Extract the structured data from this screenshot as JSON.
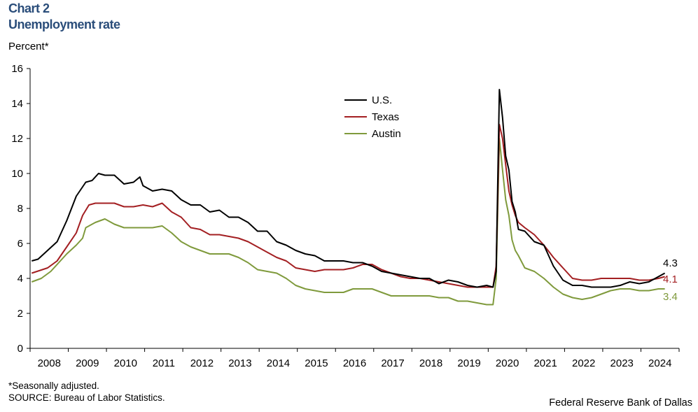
{
  "header": {
    "chart_number": "Chart 2",
    "title": "Unemployment rate",
    "ylabel": "Percent*"
  },
  "footer": {
    "note": "*Seasonally adjusted.",
    "source": "SOURCE: Bureau of Labor Statistics.",
    "credit": "Federal Reserve Bank of Dallas"
  },
  "chart_data": {
    "type": "line",
    "title": "Unemployment rate",
    "ylabel": "Percent*",
    "xlabel": "",
    "ylim": [
      0,
      16
    ],
    "yticks": [
      0,
      2,
      4,
      6,
      8,
      10,
      12,
      14,
      16
    ],
    "xticks": [
      "2008",
      "2009",
      "2010",
      "2011",
      "2012",
      "2013",
      "2014",
      "2015",
      "2016",
      "2017",
      "2018",
      "2019",
      "2020",
      "2021",
      "2022",
      "2023",
      "2024"
    ],
    "xlim": [
      "2008-01",
      "2024-12"
    ],
    "grid": false,
    "legend_position": "top-center",
    "series": [
      {
        "name": "U.S.",
        "color": "#000000",
        "end_label": "4.3",
        "points": [
          [
            "2008-01",
            5.0
          ],
          [
            "2008-03",
            5.1
          ],
          [
            "2008-06",
            5.6
          ],
          [
            "2008-09",
            6.1
          ],
          [
            "2008-12",
            7.3
          ],
          [
            "2009-03",
            8.7
          ],
          [
            "2009-06",
            9.5
          ],
          [
            "2009-08",
            9.6
          ],
          [
            "2009-10",
            10.0
          ],
          [
            "2009-12",
            9.9
          ],
          [
            "2010-03",
            9.9
          ],
          [
            "2010-06",
            9.4
          ],
          [
            "2010-09",
            9.5
          ],
          [
            "2010-11",
            9.8
          ],
          [
            "2010-12",
            9.3
          ],
          [
            "2011-03",
            9.0
          ],
          [
            "2011-06",
            9.1
          ],
          [
            "2011-09",
            9.0
          ],
          [
            "2011-12",
            8.5
          ],
          [
            "2012-03",
            8.2
          ],
          [
            "2012-06",
            8.2
          ],
          [
            "2012-09",
            7.8
          ],
          [
            "2012-12",
            7.9
          ],
          [
            "2013-03",
            7.5
          ],
          [
            "2013-06",
            7.5
          ],
          [
            "2013-09",
            7.2
          ],
          [
            "2013-12",
            6.7
          ],
          [
            "2014-03",
            6.7
          ],
          [
            "2014-06",
            6.1
          ],
          [
            "2014-09",
            5.9
          ],
          [
            "2014-12",
            5.6
          ],
          [
            "2015-03",
            5.4
          ],
          [
            "2015-06",
            5.3
          ],
          [
            "2015-09",
            5.0
          ],
          [
            "2015-12",
            5.0
          ],
          [
            "2016-03",
            5.0
          ],
          [
            "2016-06",
            4.9
          ],
          [
            "2016-09",
            4.9
          ],
          [
            "2016-12",
            4.7
          ],
          [
            "2017-03",
            4.4
          ],
          [
            "2017-06",
            4.3
          ],
          [
            "2017-09",
            4.2
          ],
          [
            "2017-12",
            4.1
          ],
          [
            "2018-03",
            4.0
          ],
          [
            "2018-06",
            4.0
          ],
          [
            "2018-09",
            3.7
          ],
          [
            "2018-12",
            3.9
          ],
          [
            "2019-03",
            3.8
          ],
          [
            "2019-06",
            3.6
          ],
          [
            "2019-09",
            3.5
          ],
          [
            "2019-12",
            3.6
          ],
          [
            "2020-02",
            3.5
          ],
          [
            "2020-03",
            4.4
          ],
          [
            "2020-04",
            14.8
          ],
          [
            "2020-05",
            13.2
          ],
          [
            "2020-06",
            11.0
          ],
          [
            "2020-07",
            10.2
          ],
          [
            "2020-08",
            8.4
          ],
          [
            "2020-09",
            7.8
          ],
          [
            "2020-10",
            6.8
          ],
          [
            "2020-12",
            6.7
          ],
          [
            "2021-03",
            6.1
          ],
          [
            "2021-06",
            5.9
          ],
          [
            "2021-09",
            4.7
          ],
          [
            "2021-12",
            3.9
          ],
          [
            "2022-03",
            3.6
          ],
          [
            "2022-06",
            3.6
          ],
          [
            "2022-09",
            3.5
          ],
          [
            "2022-12",
            3.5
          ],
          [
            "2023-03",
            3.5
          ],
          [
            "2023-06",
            3.6
          ],
          [
            "2023-09",
            3.8
          ],
          [
            "2023-12",
            3.7
          ],
          [
            "2024-03",
            3.8
          ],
          [
            "2024-06",
            4.1
          ],
          [
            "2024-08",
            4.3
          ]
        ]
      },
      {
        "name": "Texas",
        "color": "#a31f22",
        "end_label": "4.1",
        "points": [
          [
            "2008-01",
            4.3
          ],
          [
            "2008-06",
            4.6
          ],
          [
            "2008-09",
            5.0
          ],
          [
            "2008-12",
            5.8
          ],
          [
            "2009-03",
            6.6
          ],
          [
            "2009-05",
            7.6
          ],
          [
            "2009-07",
            8.2
          ],
          [
            "2009-09",
            8.3
          ],
          [
            "2009-12",
            8.3
          ],
          [
            "2010-03",
            8.3
          ],
          [
            "2010-06",
            8.1
          ],
          [
            "2010-09",
            8.1
          ],
          [
            "2010-12",
            8.2
          ],
          [
            "2011-03",
            8.1
          ],
          [
            "2011-06",
            8.3
          ],
          [
            "2011-09",
            7.8
          ],
          [
            "2011-12",
            7.5
          ],
          [
            "2012-03",
            6.9
          ],
          [
            "2012-06",
            6.8
          ],
          [
            "2012-09",
            6.5
          ],
          [
            "2012-12",
            6.5
          ],
          [
            "2013-03",
            6.4
          ],
          [
            "2013-06",
            6.3
          ],
          [
            "2013-09",
            6.1
          ],
          [
            "2013-12",
            5.8
          ],
          [
            "2014-03",
            5.5
          ],
          [
            "2014-06",
            5.2
          ],
          [
            "2014-09",
            5.0
          ],
          [
            "2014-12",
            4.6
          ],
          [
            "2015-03",
            4.5
          ],
          [
            "2015-06",
            4.4
          ],
          [
            "2015-09",
            4.5
          ],
          [
            "2015-12",
            4.5
          ],
          [
            "2016-03",
            4.5
          ],
          [
            "2016-06",
            4.6
          ],
          [
            "2016-09",
            4.8
          ],
          [
            "2016-12",
            4.8
          ],
          [
            "2017-03",
            4.5
          ],
          [
            "2017-06",
            4.3
          ],
          [
            "2017-09",
            4.1
          ],
          [
            "2017-12",
            4.0
          ],
          [
            "2018-03",
            4.0
          ],
          [
            "2018-06",
            3.9
          ],
          [
            "2018-09",
            3.8
          ],
          [
            "2018-12",
            3.7
          ],
          [
            "2019-03",
            3.6
          ],
          [
            "2019-06",
            3.5
          ],
          [
            "2019-09",
            3.5
          ],
          [
            "2019-12",
            3.5
          ],
          [
            "2020-02",
            3.5
          ],
          [
            "2020-03",
            4.7
          ],
          [
            "2020-04",
            12.8
          ],
          [
            "2020-05",
            12.0
          ],
          [
            "2020-06",
            10.5
          ],
          [
            "2020-07",
            9.0
          ],
          [
            "2020-08",
            8.2
          ],
          [
            "2020-09",
            7.6
          ],
          [
            "2020-10",
            7.2
          ],
          [
            "2020-12",
            6.9
          ],
          [
            "2021-03",
            6.5
          ],
          [
            "2021-06",
            5.9
          ],
          [
            "2021-09",
            5.2
          ],
          [
            "2021-12",
            4.6
          ],
          [
            "2022-03",
            4.0
          ],
          [
            "2022-06",
            3.9
          ],
          [
            "2022-09",
            3.9
          ],
          [
            "2022-12",
            4.0
          ],
          [
            "2023-03",
            4.0
          ],
          [
            "2023-06",
            4.0
          ],
          [
            "2023-09",
            4.0
          ],
          [
            "2023-12",
            3.9
          ],
          [
            "2024-03",
            3.9
          ],
          [
            "2024-06",
            4.0
          ],
          [
            "2024-08",
            4.1
          ]
        ]
      },
      {
        "name": "Austin",
        "color": "#7f9a3c",
        "end_label": "3.4",
        "points": [
          [
            "2008-01",
            3.8
          ],
          [
            "2008-04",
            4.0
          ],
          [
            "2008-07",
            4.4
          ],
          [
            "2008-10",
            5.0
          ],
          [
            "2008-12",
            5.4
          ],
          [
            "2009-03",
            5.9
          ],
          [
            "2009-05",
            6.3
          ],
          [
            "2009-06",
            6.9
          ],
          [
            "2009-09",
            7.2
          ],
          [
            "2009-12",
            7.4
          ],
          [
            "2010-03",
            7.1
          ],
          [
            "2010-06",
            6.9
          ],
          [
            "2010-09",
            6.9
          ],
          [
            "2010-12",
            6.9
          ],
          [
            "2011-03",
            6.9
          ],
          [
            "2011-06",
            7.0
          ],
          [
            "2011-09",
            6.6
          ],
          [
            "2011-12",
            6.1
          ],
          [
            "2012-03",
            5.8
          ],
          [
            "2012-06",
            5.6
          ],
          [
            "2012-09",
            5.4
          ],
          [
            "2012-12",
            5.4
          ],
          [
            "2013-03",
            5.4
          ],
          [
            "2013-06",
            5.2
          ],
          [
            "2013-09",
            4.9
          ],
          [
            "2013-12",
            4.5
          ],
          [
            "2014-03",
            4.4
          ],
          [
            "2014-06",
            4.3
          ],
          [
            "2014-09",
            4.0
          ],
          [
            "2014-12",
            3.6
          ],
          [
            "2015-03",
            3.4
          ],
          [
            "2015-06",
            3.3
          ],
          [
            "2015-09",
            3.2
          ],
          [
            "2015-12",
            3.2
          ],
          [
            "2016-03",
            3.2
          ],
          [
            "2016-06",
            3.4
          ],
          [
            "2016-09",
            3.4
          ],
          [
            "2016-12",
            3.4
          ],
          [
            "2017-03",
            3.2
          ],
          [
            "2017-06",
            3.0
          ],
          [
            "2017-09",
            3.0
          ],
          [
            "2017-12",
            3.0
          ],
          [
            "2018-03",
            3.0
          ],
          [
            "2018-06",
            3.0
          ],
          [
            "2018-09",
            2.9
          ],
          [
            "2018-12",
            2.9
          ],
          [
            "2019-03",
            2.7
          ],
          [
            "2019-06",
            2.7
          ],
          [
            "2019-09",
            2.6
          ],
          [
            "2019-12",
            2.5
          ],
          [
            "2020-02",
            2.5
          ],
          [
            "2020-03",
            4.0
          ],
          [
            "2020-04",
            12.0
          ],
          [
            "2020-05",
            10.2
          ],
          [
            "2020-06",
            8.5
          ],
          [
            "2020-07",
            7.6
          ],
          [
            "2020-08",
            6.2
          ],
          [
            "2020-09",
            5.6
          ],
          [
            "2020-10",
            5.3
          ],
          [
            "2020-12",
            4.6
          ],
          [
            "2021-03",
            4.4
          ],
          [
            "2021-06",
            4.0
          ],
          [
            "2021-09",
            3.5
          ],
          [
            "2021-12",
            3.1
          ],
          [
            "2022-03",
            2.9
          ],
          [
            "2022-06",
            2.8
          ],
          [
            "2022-09",
            2.9
          ],
          [
            "2022-12",
            3.1
          ],
          [
            "2023-03",
            3.3
          ],
          [
            "2023-06",
            3.4
          ],
          [
            "2023-09",
            3.4
          ],
          [
            "2023-12",
            3.3
          ],
          [
            "2024-03",
            3.3
          ],
          [
            "2024-06",
            3.4
          ],
          [
            "2024-08",
            3.4
          ]
        ]
      }
    ]
  }
}
